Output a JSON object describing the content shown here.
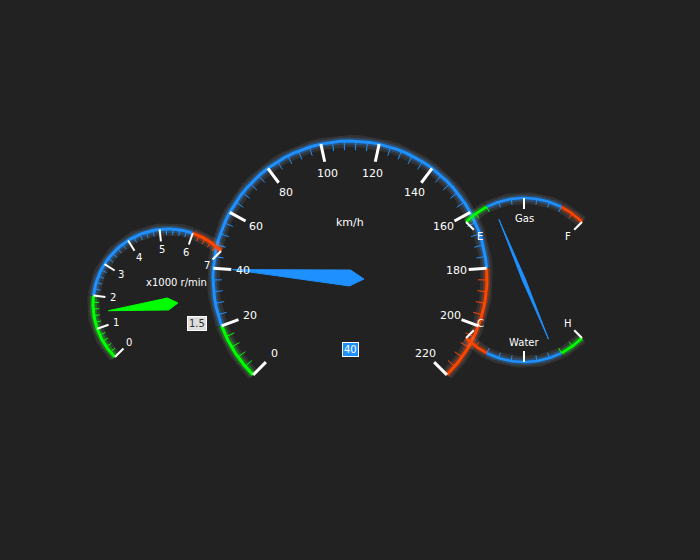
{
  "chart_data": [
    {
      "type": "gauge",
      "title": "km/h",
      "range": [
        0,
        220
      ],
      "ticks": [
        0,
        20,
        40,
        60,
        80,
        100,
        120,
        140,
        160,
        180,
        200,
        220
      ],
      "value": 40,
      "data_labels": true,
      "bands": [
        {
          "from": 0,
          "to": 20,
          "color": "#00ff00"
        },
        {
          "from": 20,
          "to": 180,
          "color": "#1e90ff"
        },
        {
          "from": 180,
          "to": 220,
          "color": "#ff4500"
        }
      ]
    },
    {
      "type": "gauge",
      "title": "x1000 r/min",
      "range": [
        0,
        7
      ],
      "ticks": [
        0,
        1,
        2,
        3,
        4,
        5,
        6,
        7
      ],
      "value": 1.5,
      "data_labels": true,
      "bands": [
        {
          "from": 0,
          "to": 2,
          "color": "#00ff00"
        },
        {
          "from": 2,
          "to": 6,
          "color": "#1e90ff"
        },
        {
          "from": 6,
          "to": 7,
          "color": "#ff4500"
        }
      ]
    },
    {
      "type": "gauge",
      "range": [
        0,
        2
      ],
      "ticks": [
        {
          "value": 0,
          "label": "E"
        },
        {
          "value": 1,
          "label": "Gas"
        },
        {
          "value": 2,
          "label": "F"
        }
      ],
      "value": 0.5,
      "data_labels": false,
      "bands": [
        {
          "from": 0,
          "to": 0.4,
          "color": "#00ff00"
        },
        {
          "from": 0.4,
          "to": 1.6,
          "color": "#1e90ff"
        },
        {
          "from": 1.6,
          "to": 2,
          "color": "#ff4500"
        }
      ]
    },
    {
      "type": "gauge",
      "range": [
        0,
        2
      ],
      "ticks": [
        {
          "value": 0,
          "label": "H"
        },
        {
          "value": 1,
          "label": "Water"
        },
        {
          "value": 2,
          "label": "C"
        }
      ],
      "value": 0.5,
      "data_labels": false,
      "bands": [
        {
          "from": 0,
          "to": 0.4,
          "color": "#00ff00"
        },
        {
          "from": 0.4,
          "to": 1.6,
          "color": "#1e90ff"
        },
        {
          "from": 1.6,
          "to": 2,
          "color": "#ff4500"
        }
      ]
    }
  ]
}
